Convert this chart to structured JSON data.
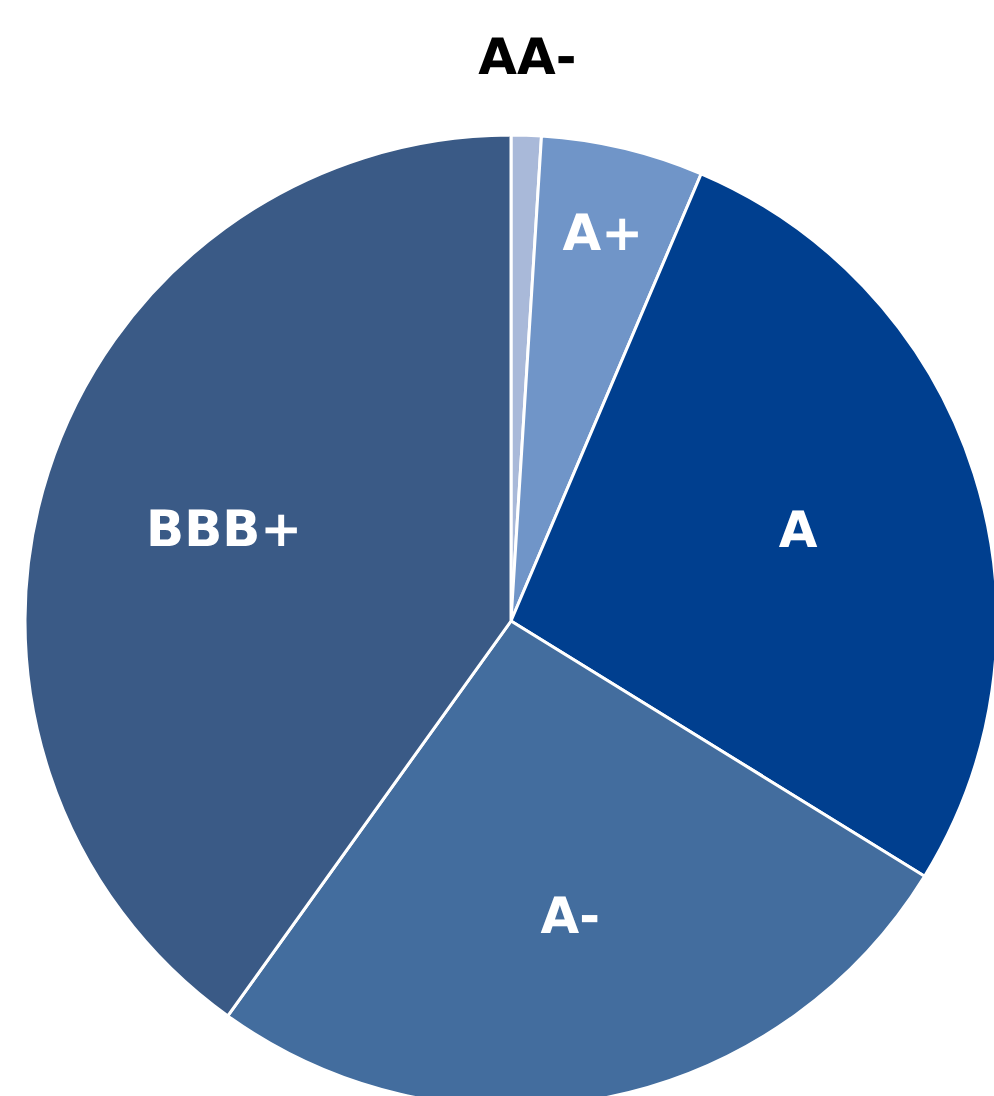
{
  "chart_data": {
    "type": "pie",
    "categories": [
      "AA-",
      "A+",
      "A",
      "A-",
      "BBB+"
    ],
    "values": [
      1,
      5.4,
      27.4,
      26.1,
      40.1
    ],
    "colors": [
      "#a9b9d9",
      "#7095c8",
      "#003f8f",
      "#436d9e",
      "#3a5a86"
    ],
    "legend": false
  }
}
